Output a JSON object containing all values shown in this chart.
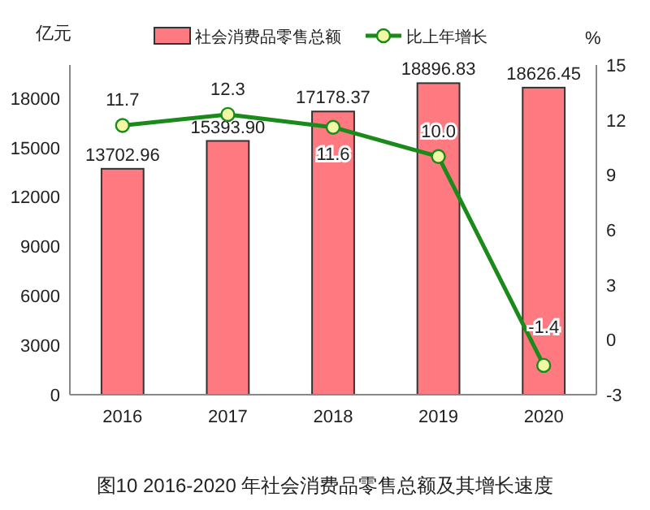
{
  "chart_data": {
    "type": "bar",
    "title": "图10  2016-2020 年社会消费品零售总额及其增长速度",
    "ylabel": "亿元",
    "y2label": "%",
    "categories": [
      "2016",
      "2017",
      "2018",
      "2019",
      "2020"
    ],
    "series": [
      {
        "name": "社会消费品零售总额",
        "color": "#ff7a80",
        "values": [
          13702.96,
          15393.9,
          17178.37,
          18896.83,
          18626.45
        ],
        "value_labels": [
          "13702.96",
          "15393.90",
          "17178.37",
          "18896.83",
          "18626.45"
        ]
      },
      {
        "name": "比上年增长",
        "type": "line",
        "axis": "y2",
        "color": "#1a8a1a",
        "values": [
          11.7,
          12.3,
          11.6,
          10.0,
          -1.4
        ],
        "value_labels": [
          "11.7",
          "12.3",
          "11.6",
          "10.0",
          "-1.4"
        ]
      }
    ],
    "ylim": [
      0,
      20000
    ],
    "yticks": [
      0,
      3000,
      6000,
      9000,
      12000,
      15000,
      18000
    ],
    "y2lim": [
      -3,
      15
    ],
    "y2ticks": [
      -3,
      0,
      3,
      6,
      9,
      12,
      15
    ],
    "marker": "circle",
    "legend": "top",
    "grid": false
  }
}
